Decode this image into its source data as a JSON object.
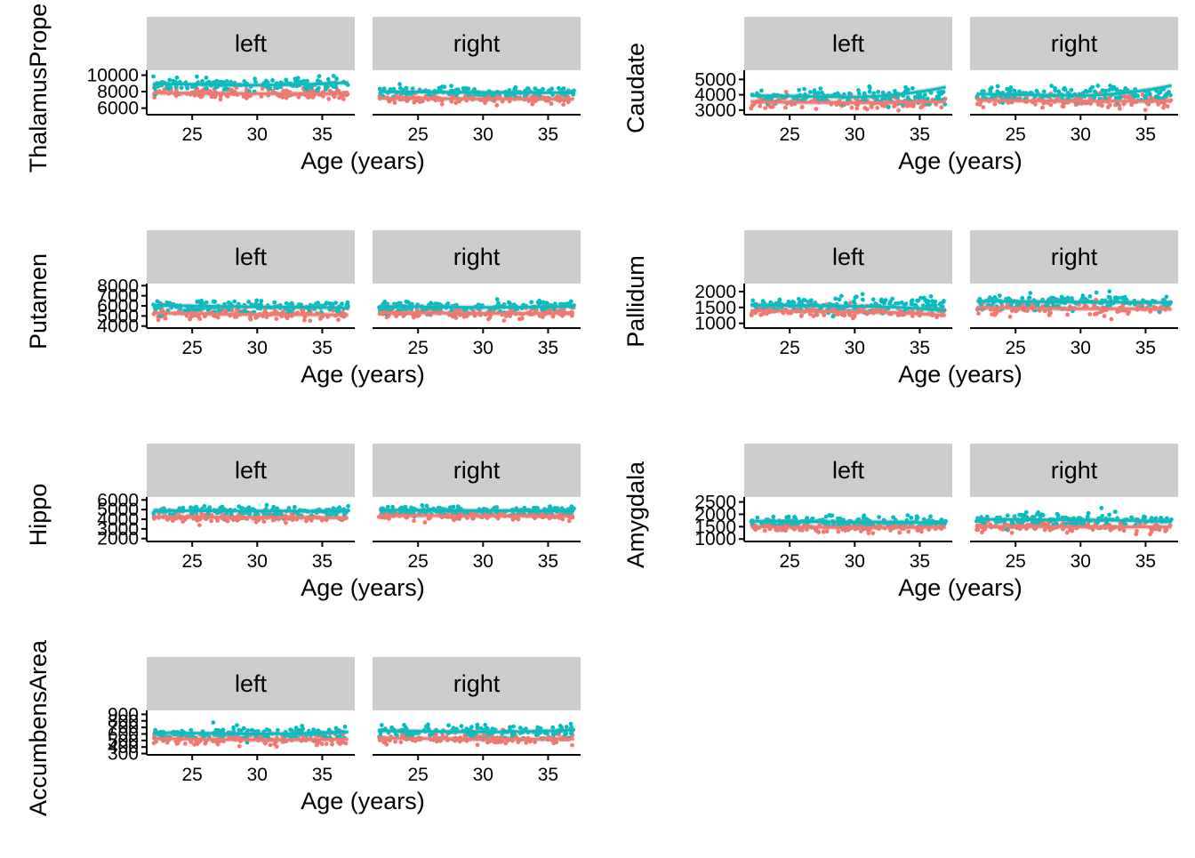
{
  "chart_data": [
    {
      "type": "scatter",
      "ylabel": "ThalamusPrope",
      "xlabel": "Age (years)",
      "facets": [
        "left",
        "right"
      ],
      "xlim": [
        21.5,
        37.5
      ],
      "x_ticks": [
        25,
        30,
        35
      ],
      "ylim": [
        5200,
        10600
      ],
      "y_ticks": [
        6000,
        8000,
        10000
      ],
      "y_tick_labels": [
        "6000",
        "8000",
        "10000"
      ],
      "series": [
        {
          "color": "#F8766D",
          "values": {
            "left": {
              "mean": 7800,
              "spread": 620,
              "trend": [
                7850,
                7750,
                7760
              ]
            },
            "right": {
              "mean": 7150,
              "spread": 560,
              "trend": [
                7200,
                7130,
                7120
              ]
            }
          }
        },
        {
          "color": "#00BFC4",
          "values": {
            "left": {
              "mean": 8900,
              "spread": 700,
              "trend": [
                8950,
                8800,
                9100
              ]
            },
            "right": {
              "mean": 7950,
              "spread": 620,
              "trend": [
                8000,
                7900,
                7850
              ]
            }
          }
        }
      ]
    },
    {
      "type": "scatter",
      "ylabel": "Caudate",
      "xlabel": "Age (years)",
      "facets": [
        "left",
        "right"
      ],
      "xlim": [
        21.5,
        37.5
      ],
      "x_ticks": [
        25,
        30,
        35
      ],
      "ylim": [
        2700,
        5600
      ],
      "y_ticks": [
        3000,
        4000,
        5000
      ],
      "y_tick_labels": [
        "3000",
        "4000",
        "5000"
      ],
      "series": [
        {
          "color": "#F8766D",
          "values": {
            "left": {
              "mean": 3500,
              "spread": 430,
              "trend": [
                3550,
                3480,
                3550
              ]
            },
            "right": {
              "mean": 3600,
              "spread": 450,
              "trend": [
                3650,
                3580,
                3600
              ]
            }
          }
        },
        {
          "color": "#00BFC4",
          "values": {
            "left": {
              "mean": 3900,
              "spread": 500,
              "trend": [
                3950,
                3850,
                4500
              ]
            },
            "right": {
              "mean": 4000,
              "spread": 520,
              "trend": [
                4050,
                3950,
                4600
              ]
            }
          }
        }
      ]
    },
    {
      "type": "scatter",
      "ylabel": "Putamen",
      "xlabel": "Age (years)",
      "facets": [
        "left",
        "right"
      ],
      "xlim": [
        21.5,
        37.5
      ],
      "x_ticks": [
        25,
        30,
        35
      ],
      "ylim": [
        3800,
        8200
      ],
      "y_ticks": [
        4000,
        5000,
        6000,
        7000,
        8000
      ],
      "y_tick_labels": [
        "4000",
        "5000",
        "6000",
        "7000",
        "8000"
      ],
      "series": [
        {
          "color": "#F8766D",
          "values": {
            "left": {
              "mean": 5200,
              "spread": 520,
              "trend": [
                5300,
                5150,
                5100
              ]
            },
            "right": {
              "mean": 5300,
              "spread": 520,
              "trend": [
                5350,
                5250,
                5250
              ]
            }
          }
        },
        {
          "color": "#00BFC4",
          "values": {
            "left": {
              "mean": 5950,
              "spread": 560,
              "trend": [
                6050,
                5900,
                5800
              ]
            },
            "right": {
              "mean": 5900,
              "spread": 560,
              "trend": [
                5950,
                5850,
                5950
              ]
            }
          }
        }
      ]
    },
    {
      "type": "scatter",
      "ylabel": "Pallidum",
      "xlabel": "Age (years)",
      "facets": [
        "left",
        "right"
      ],
      "xlim": [
        21.5,
        37.5
      ],
      "x_ticks": [
        25,
        30,
        35
      ],
      "ylim": [
        850,
        2250
      ],
      "y_ticks": [
        1000,
        1500,
        2000
      ],
      "y_tick_labels": [
        "1000",
        "1500",
        "2000"
      ],
      "series": [
        {
          "color": "#F8766D",
          "values": {
            "left": {
              "mean": 1380,
              "spread": 210,
              "trend": [
                1400,
                1360,
                1250
              ]
            },
            "right": {
              "mean": 1480,
              "spread": 210,
              "trend": [
                1500,
                1460,
                1450
              ]
            }
          }
        },
        {
          "color": "#00BFC4",
          "values": {
            "left": {
              "mean": 1560,
              "spread": 230,
              "trend": [
                1580,
                1540,
                1400
              ]
            },
            "right": {
              "mean": 1680,
              "spread": 230,
              "trend": [
                1700,
                1670,
                1650
              ]
            }
          }
        }
      ]
    },
    {
      "type": "scatter",
      "ylabel": "Hippo",
      "xlabel": "Age (years)",
      "facets": [
        "left",
        "right"
      ],
      "xlim": [
        21.5,
        37.5
      ],
      "x_ticks": [
        25,
        30,
        35
      ],
      "ylim": [
        1700,
        6300
      ],
      "y_ticks": [
        2000,
        3000,
        4000,
        5000,
        6000
      ],
      "y_tick_labels": [
        "2000",
        "3000",
        "4000",
        "5000",
        "6000"
      ],
      "series": [
        {
          "color": "#F8766D",
          "values": {
            "left": {
              "mean": 4200,
              "spread": 480,
              "trend": [
                4250,
                4200,
                4150
              ]
            },
            "right": {
              "mean": 4350,
              "spread": 480,
              "trend": [
                4400,
                4350,
                4350
              ]
            }
          }
        },
        {
          "color": "#00BFC4",
          "values": {
            "left": {
              "mean": 4850,
              "spread": 480,
              "trend": [
                4900,
                4850,
                4800
              ]
            },
            "right": {
              "mean": 4900,
              "spread": 480,
              "trend": [
                4950,
                4900,
                4850
              ]
            }
          }
        }
      ]
    },
    {
      "type": "scatter",
      "ylabel": "Amygdala",
      "xlabel": "Age (years)",
      "facets": [
        "left",
        "right"
      ],
      "xlim": [
        21.5,
        37.5
      ],
      "x_ticks": [
        25,
        30,
        35
      ],
      "ylim": [
        900,
        2700
      ],
      "y_ticks": [
        1000,
        1500,
        2000,
        2500
      ],
      "y_tick_labels": [
        "1000",
        "1500",
        "2000",
        "2500"
      ],
      "series": [
        {
          "color": "#F8766D",
          "values": {
            "left": {
              "mean": 1480,
              "spread": 200,
              "trend": [
                1500,
                1470,
                1480
              ]
            },
            "right": {
              "mean": 1500,
              "spread": 200,
              "trend": [
                1520,
                1490,
                1490
              ]
            }
          }
        },
        {
          "color": "#00BFC4",
          "values": {
            "left": {
              "mean": 1700,
              "spread": 230,
              "trend": [
                1720,
                1690,
                1650
              ]
            },
            "right": {
              "mean": 1780,
              "spread": 250,
              "trend": [
                1800,
                1770,
                1700
              ]
            }
          }
        }
      ]
    },
    {
      "type": "scatter",
      "ylabel": "AccumbensArea",
      "xlabel": "Age (years)",
      "facets": [
        "left",
        "right"
      ],
      "xlim": [
        21.5,
        37.5
      ],
      "x_ticks": [
        25,
        30,
        35
      ],
      "ylim": [
        280,
        960
      ],
      "y_ticks": [
        300,
        400,
        500,
        600,
        700,
        800,
        900
      ],
      "y_tick_labels": [
        "300",
        "400",
        "500",
        "600",
        "700",
        "800",
        "900"
      ],
      "series": [
        {
          "color": "#F8766D",
          "values": {
            "left": {
              "mean": 520,
              "spread": 90,
              "trend": [
                530,
                510,
                520
              ]
            },
            "right": {
              "mean": 530,
              "spread": 90,
              "trend": [
                540,
                520,
                525
              ]
            }
          }
        },
        {
          "color": "#00BFC4",
          "values": {
            "left": {
              "mean": 610,
              "spread": 100,
              "trend": [
                620,
                600,
                630
              ]
            },
            "right": {
              "mean": 640,
              "spread": 100,
              "trend": [
                650,
                630,
                660
              ]
            }
          }
        }
      ]
    }
  ]
}
